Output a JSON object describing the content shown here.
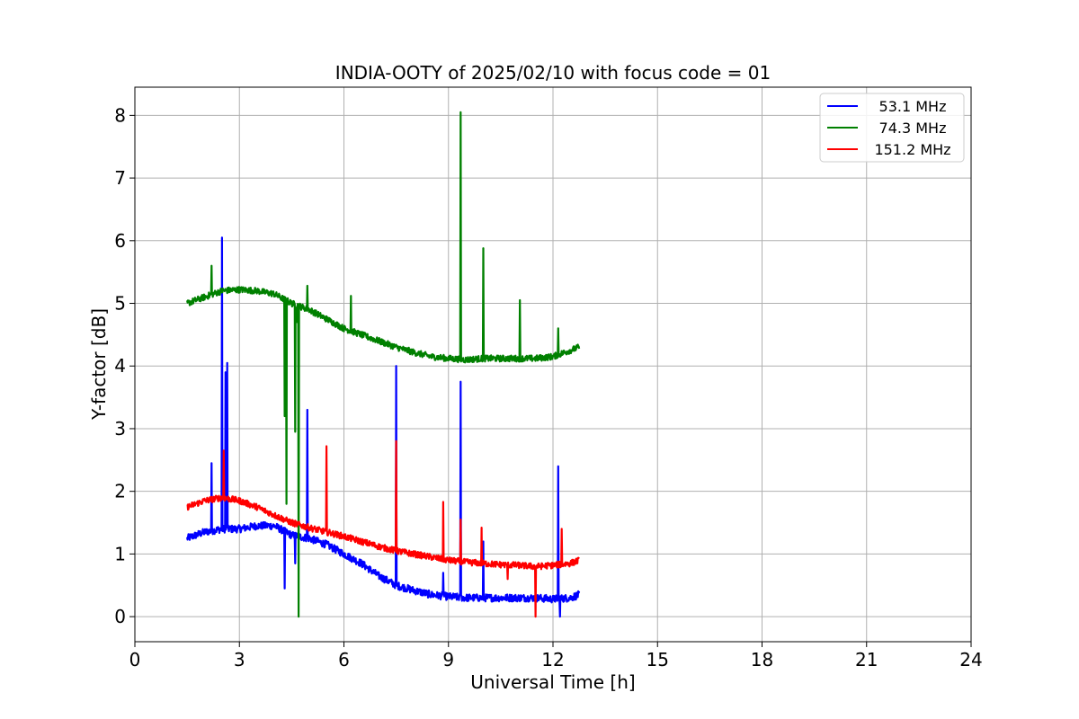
{
  "chart_data": {
    "type": "line",
    "title": "INDIA-OOTY of 2025/02/10 with focus code = 01",
    "xlabel": "Universal Time [h]",
    "ylabel": "Y-factor [dB]",
    "xlim": [
      0,
      24
    ],
    "ylim": [
      -0.4,
      8.45
    ],
    "xticks": [
      0,
      3,
      6,
      9,
      12,
      15,
      18,
      21,
      24
    ],
    "yticks": [
      0,
      1,
      2,
      3,
      4,
      5,
      6,
      7,
      8
    ],
    "xtick_labels": [
      "0",
      "3",
      "6",
      "9",
      "12",
      "15",
      "18",
      "21",
      "24"
    ],
    "ytick_labels": [
      "0",
      "1",
      "2",
      "3",
      "4",
      "5",
      "6",
      "7",
      "8"
    ],
    "grid": true,
    "legend_position": "top-right",
    "series": [
      {
        "name": "53.1 MHz",
        "color": "#0000ff",
        "x": [
          1.5,
          2.0,
          2.5,
          3.0,
          3.5,
          4.0,
          4.5,
          5.0,
          5.5,
          6.0,
          6.5,
          7.0,
          7.5,
          8.0,
          8.5,
          9.0,
          9.5,
          10.0,
          10.5,
          11.0,
          11.5,
          12.0,
          12.5,
          12.75
        ],
        "y": [
          1.25,
          1.35,
          1.4,
          1.4,
          1.45,
          1.45,
          1.3,
          1.25,
          1.15,
          1.0,
          0.85,
          0.65,
          0.5,
          0.42,
          0.35,
          0.32,
          0.3,
          0.3,
          0.3,
          0.3,
          0.3,
          0.28,
          0.3,
          0.35
        ],
        "noise": 0.06,
        "spikes": [
          [
            2.2,
            2.45
          ],
          [
            2.5,
            6.05
          ],
          [
            2.6,
            3.9
          ],
          [
            2.65,
            4.05
          ],
          [
            4.3,
            0.45
          ],
          [
            4.6,
            0.85
          ],
          [
            4.95,
            3.3
          ],
          [
            7.5,
            4.0
          ],
          [
            8.85,
            0.7
          ],
          [
            9.35,
            3.75
          ],
          [
            10.0,
            1.2
          ],
          [
            12.15,
            2.4
          ],
          [
            12.2,
            0.0
          ]
        ]
      },
      {
        "name": "74.3 MHz",
        "color": "#008000",
        "x": [
          1.5,
          2.0,
          2.5,
          3.0,
          3.5,
          4.0,
          4.5,
          5.0,
          5.5,
          6.0,
          6.5,
          7.0,
          7.5,
          8.0,
          8.5,
          9.0,
          9.5,
          10.0,
          10.5,
          11.0,
          11.5,
          12.0,
          12.5,
          12.75
        ],
        "y": [
          5.0,
          5.1,
          5.2,
          5.22,
          5.2,
          5.15,
          5.0,
          4.9,
          4.75,
          4.6,
          4.5,
          4.4,
          4.3,
          4.22,
          4.15,
          4.12,
          4.1,
          4.12,
          4.12,
          4.12,
          4.12,
          4.15,
          4.25,
          4.3
        ],
        "noise": 0.05,
        "spikes": [
          [
            2.2,
            5.6
          ],
          [
            4.3,
            3.2
          ],
          [
            4.35,
            1.8
          ],
          [
            4.6,
            2.95
          ],
          [
            4.65,
            4.7
          ],
          [
            4.7,
            0.0
          ],
          [
            4.95,
            5.28
          ],
          [
            6.2,
            5.12
          ],
          [
            9.35,
            8.05
          ],
          [
            10.0,
            5.88
          ],
          [
            11.05,
            5.05
          ],
          [
            12.15,
            4.6
          ]
        ]
      },
      {
        "name": "151.2 MHz",
        "color": "#ff0000",
        "x": [
          1.5,
          2.0,
          2.5,
          3.0,
          3.5,
          4.0,
          4.5,
          5.0,
          5.5,
          6.0,
          6.5,
          7.0,
          7.5,
          8.0,
          8.5,
          9.0,
          9.5,
          10.0,
          10.5,
          11.0,
          11.5,
          12.0,
          12.5,
          12.75
        ],
        "y": [
          1.75,
          1.85,
          1.9,
          1.85,
          1.75,
          1.62,
          1.5,
          1.42,
          1.35,
          1.28,
          1.2,
          1.12,
          1.05,
          1.0,
          0.95,
          0.9,
          0.87,
          0.85,
          0.83,
          0.82,
          0.8,
          0.82,
          0.85,
          0.9
        ],
        "noise": 0.05,
        "spikes": [
          [
            2.55,
            2.65
          ],
          [
            5.5,
            2.72
          ],
          [
            7.5,
            2.8
          ],
          [
            8.85,
            1.83
          ],
          [
            9.35,
            1.55
          ],
          [
            9.95,
            1.42
          ],
          [
            10.7,
            0.6
          ],
          [
            11.5,
            0.0
          ],
          [
            12.25,
            1.4
          ]
        ]
      }
    ]
  }
}
